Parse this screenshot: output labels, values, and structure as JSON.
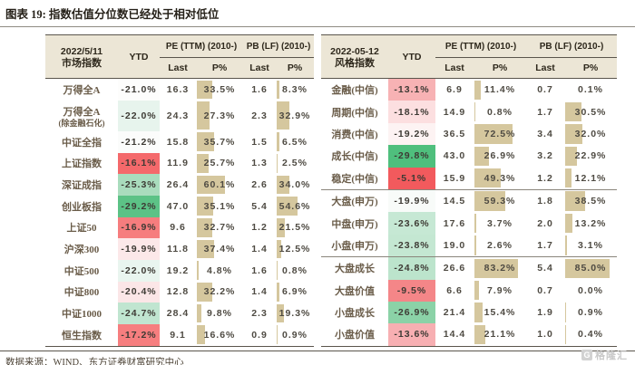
{
  "title": "图表 19: 指数估值分位数已经处于相对低位",
  "source": "数据来源：WIND、东方证券财富研究中心",
  "watermark": {
    "logo": "G",
    "text": "格隆汇"
  },
  "colors": {
    "header-bg": "#ece6d6",
    "bar": "#d5c79e",
    "border-dark": "#5a554c",
    "border-light": "#8a857b",
    "label-text": "#6a5c49",
    "num-text": "#4e4a42",
    "title-text": "#262119",
    "source-text": "#4c4336",
    "watermark": "#c9c9c9",
    "ytd-red-max": "#f25a5d",
    "ytd-green-max": "#4fbf7d"
  },
  "chart_data": [
    {
      "type": "table",
      "date": "2022/5/11",
      "index_col": "市场指数",
      "cols": {
        "ytd": "YTD",
        "pe": "PE (TTM) (2010-)",
        "pb": "PB (LF) (2010-)",
        "last": "Last",
        "pct": "P%"
      },
      "rows": [
        {
          "name": "万得全A",
          "ytd": "-21.0%",
          "ytd_bg": "#fdfdfc",
          "pe_last": "16.3",
          "pe_pct": 33.5,
          "pb_last": "1.6",
          "pb_pct": 8.3
        },
        {
          "name": "万得全A",
          "name2": "(除金融石化)",
          "ytd": "-22.0%",
          "ytd_bg": "#e7f4ed",
          "pe_last": "24.3",
          "pe_pct": 27.3,
          "pb_last": "2.3",
          "pb_pct": 32.9
        },
        {
          "name": "中证全指",
          "ytd": "-21.2%",
          "ytd_bg": "#fbfcfb",
          "pe_last": "15.8",
          "pe_pct": 35.7,
          "pb_last": "1.5",
          "pb_pct": 6.5
        },
        {
          "name": "上证指数",
          "ytd": "-16.1%",
          "ytd_bg": "#f4696b",
          "pe_last": "11.9",
          "pe_pct": 25.7,
          "pb_last": "1.3",
          "pb_pct": 2.5
        },
        {
          "name": "深证成指",
          "ytd": "-25.3%",
          "ytd_bg": "#a9dcbd",
          "pe_last": "26.4",
          "pe_pct": 60.1,
          "pb_last": "2.6",
          "pb_pct": 34.0
        },
        {
          "name": "创业板指",
          "ytd": "-29.2%",
          "ytd_bg": "#5cc286",
          "pe_last": "47.0",
          "pe_pct": 35.1,
          "pb_last": "5.4",
          "pb_pct": 54.6
        },
        {
          "name": "上证50",
          "ytd": "-16.9%",
          "ytd_bg": "#f67d7e",
          "pe_last": "9.6",
          "pe_pct": 32.7,
          "pb_last": "1.2",
          "pb_pct": 21.5
        },
        {
          "name": "沪深300",
          "ytd": "-19.9%",
          "ytd_bg": "#fce8e9",
          "pe_last": "11.8",
          "pe_pct": 37.4,
          "pb_last": "1.4",
          "pb_pct": 12.5
        },
        {
          "name": "中证500",
          "ytd": "-22.0%",
          "ytd_bg": "#e9f5ef",
          "pe_last": "19.2",
          "pe_pct": 4.8,
          "pb_last": "1.6",
          "pb_pct": 0.8
        },
        {
          "name": "中证800",
          "ytd": "-20.4%",
          "ytd_bg": "#fbe6e7",
          "pe_last": "12.8",
          "pe_pct": 32.2,
          "pb_last": "1.4",
          "pb_pct": 6.9
        },
        {
          "name": "中证1000",
          "ytd": "-24.7%",
          "ytd_bg": "#c0e5d0",
          "pe_last": "28.4",
          "pe_pct": 9.8,
          "pb_last": "2.3",
          "pb_pct": 19.3
        },
        {
          "name": "恒生指数",
          "ytd": "-17.2%",
          "ytd_bg": "#f67e7f",
          "pe_last": "9.1",
          "pe_pct": 16.6,
          "pb_last": "0.9",
          "pb_pct": 0.9
        }
      ]
    },
    {
      "type": "table",
      "date": "2022-05-12",
      "index_col": "风格指数",
      "cols": {
        "ytd": "YTD",
        "pe": "PE (TTM) (2010-)",
        "pb": "PB (LF) (2010-)",
        "last": "Last",
        "pct": "P%"
      },
      "rows": [
        {
          "name": "金融(中信)",
          "ytd": "-13.1%",
          "ytd_bg": "#f7b2b4",
          "pe_last": "6.9",
          "pe_pct": 11.4,
          "pb_last": "0.7",
          "pb_pct": 0.1
        },
        {
          "name": "周期(中信)",
          "ytd": "-18.1%",
          "ytd_bg": "#fcdfe0",
          "pe_last": "14.9",
          "pe_pct": 0.8,
          "pb_last": "1.7",
          "pb_pct": 30.5
        },
        {
          "name": "消费(中信)",
          "ytd": "-19.2%",
          "ytd_bg": "#fdf3f3",
          "pe_last": "36.5",
          "pe_pct": 72.5,
          "pb_last": "3.4",
          "pb_pct": 32.0
        },
        {
          "name": "成长(中信)",
          "ytd": "-29.8%",
          "ytd_bg": "#4fbf7d",
          "pe_last": "43.0",
          "pe_pct": 26.9,
          "pb_last": "3.2",
          "pb_pct": 22.9
        },
        {
          "name": "稳定(中信)",
          "ytd": "-5.1%",
          "ytd_bg": "#f25a5d",
          "pe_last": "15.9",
          "pe_pct": 49.3,
          "pb_last": "1.2",
          "pb_pct": 12.1,
          "divider": true
        },
        {
          "name": "大盘(申万)",
          "ytd": "-19.9%",
          "ytd_bg": "#f8fbf9",
          "pe_last": "14.5",
          "pe_pct": 59.3,
          "pb_last": "1.8",
          "pb_pct": 38.5
        },
        {
          "name": "中盘(申万)",
          "ytd": "-23.6%",
          "ytd_bg": "#c6e8d4",
          "pe_last": "17.6",
          "pe_pct": 3.7,
          "pb_last": "2.0",
          "pb_pct": 13.2
        },
        {
          "name": "小盘(申万)",
          "ytd": "-23.8%",
          "ytd_bg": "#c4e7d2",
          "pe_last": "19.0",
          "pe_pct": 2.6,
          "pb_last": "1.7",
          "pb_pct": 3.1,
          "divider": true
        },
        {
          "name": "大盘成长",
          "ytd": "-24.8%",
          "ytd_bg": "#bce4cc",
          "pe_last": "26.6",
          "pe_pct": 83.2,
          "pb_last": "5.4",
          "pb_pct": 85.0
        },
        {
          "name": "大盘价值",
          "ytd": "-9.5%",
          "ytd_bg": "#f48688",
          "pe_last": "6.6",
          "pe_pct": 7.9,
          "pb_last": "0.7",
          "pb_pct": 0.0
        },
        {
          "name": "小盘成长",
          "ytd": "-26.9%",
          "ytd_bg": "#8bd2a7",
          "pe_last": "21.4",
          "pe_pct": 15.4,
          "pb_last": "1.9",
          "pb_pct": 0.9
        },
        {
          "name": "小盘价值",
          "ytd": "-13.6%",
          "ytd_bg": "#f7afb2",
          "pe_last": "14.4",
          "pe_pct": 21.1,
          "pb_last": "1.0",
          "pb_pct": 0.4
        }
      ]
    }
  ]
}
